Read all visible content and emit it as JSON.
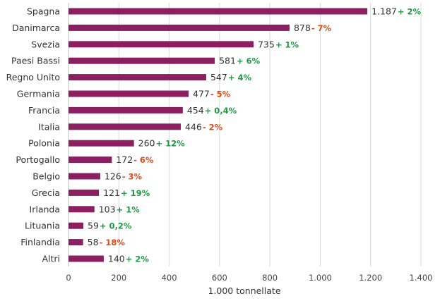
{
  "chart_data": {
    "type": "bar",
    "orientation": "horizontal",
    "title": "",
    "xlabel": "1.000 tonnellate",
    "ylabel": "",
    "xlim": [
      0,
      1400
    ],
    "x_ticks": [
      "0",
      "200",
      "400",
      "600",
      "800",
      "1.000",
      "1.200",
      "1.400"
    ],
    "grid": "vertical",
    "legend": "none",
    "colors": {
      "bar": "#8b1f61",
      "positive": "#1e9a45",
      "negative": "#e04a1b",
      "grid": "#d9d9d9"
    },
    "categories": [
      "Spagna",
      "Danimarca",
      "Svezia",
      "Paesi Bassi",
      "Regno Unito",
      "Germania",
      "Francia",
      "Italia",
      "Polonia",
      "Portogallo",
      "Belgio",
      "Grecia",
      "Irlanda",
      "Lituania",
      "Finlandia",
      "Altri"
    ],
    "values": [
      1187,
      878,
      735,
      581,
      547,
      477,
      454,
      446,
      260,
      172,
      126,
      121,
      103,
      59,
      58,
      140
    ],
    "value_labels": [
      "1.187",
      "878",
      "735",
      "581",
      "547",
      "477",
      "454",
      "446",
      "260",
      "172",
      "126",
      "121",
      "103",
      "59",
      "58",
      "140"
    ],
    "change_labels": [
      "+ 2%",
      "- 7%",
      "+ 1%",
      "+ 6%",
      "+ 4%",
      "- 5%",
      "+ 0,4%",
      "- 2%",
      "+ 12%",
      "- 6%",
      "- 3%",
      "+ 19%",
      "+ 1%",
      "+ 0,2%",
      "- 18%",
      "+ 2%"
    ],
    "change_direction": [
      "up",
      "down",
      "up",
      "up",
      "up",
      "down",
      "up",
      "down",
      "up",
      "down",
      "down",
      "up",
      "up",
      "up",
      "down",
      "up"
    ]
  }
}
